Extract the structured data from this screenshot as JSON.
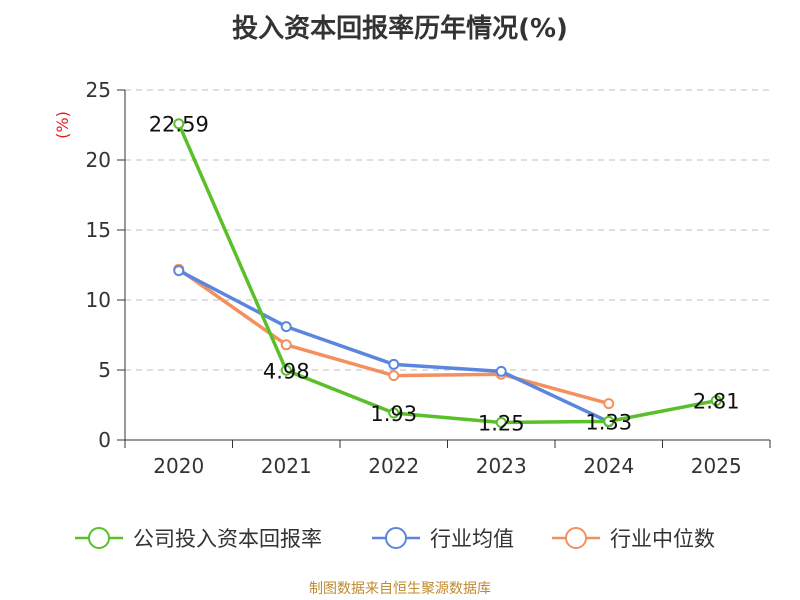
{
  "chart_data": {
    "type": "line",
    "title": "投入资本回报率历年情况(%)",
    "ylabel": "(%)",
    "xlabel": "",
    "categories": [
      "2020",
      "2021",
      "2022",
      "2023",
      "2024",
      "2025"
    ],
    "ylim": [
      0,
      25
    ],
    "yticks": [
      0,
      5,
      10,
      15,
      20,
      25
    ],
    "grid": true,
    "legend_position": "bottom",
    "series": [
      {
        "name": "公司投入资本回报率",
        "color": "#5ac02a",
        "values": [
          22.59,
          4.98,
          1.93,
          1.25,
          1.33,
          2.81
        ],
        "labels": [
          "22.59",
          "4.98",
          "1.93",
          "1.25",
          "1.33",
          "2.81"
        ]
      },
      {
        "name": "行业均值",
        "color": "#5b86de",
        "values": [
          12.1,
          8.1,
          5.4,
          4.9,
          1.3,
          null
        ]
      },
      {
        "name": "行业中位数",
        "color": "#f4905e",
        "values": [
          12.2,
          6.8,
          4.6,
          4.7,
          2.6,
          null
        ]
      }
    ],
    "source": "制图数据来自恒生聚源数据库"
  }
}
